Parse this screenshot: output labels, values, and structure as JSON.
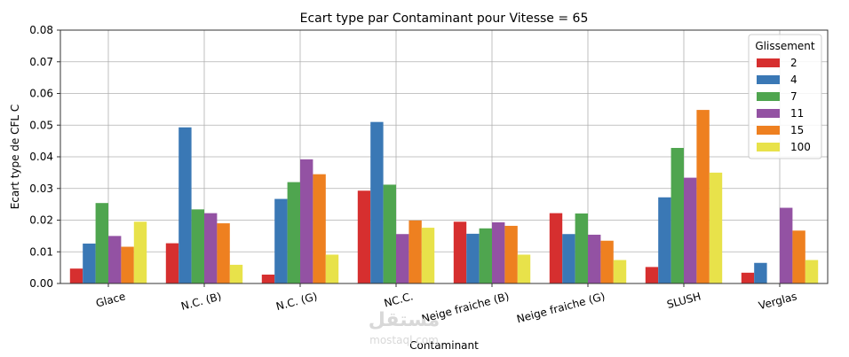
{
  "chart_data": {
    "type": "bar",
    "title": "Ecart type par Contaminant pour Vitesse = 65",
    "xlabel": "Contaminant",
    "ylabel": "Ecart type de CFL C",
    "ylim": [
      0,
      0.08
    ],
    "yticks": [
      "0.00",
      "0.01",
      "0.02",
      "0.03",
      "0.04",
      "0.05",
      "0.06",
      "0.07",
      "0.08"
    ],
    "grid": true,
    "legend_title": "Glissement",
    "legend_position": "top-right",
    "categories": [
      "Glace",
      "N.C. (B)",
      "N.C. (G)",
      "NC.C.",
      "Neige fraiche (B)",
      "Neige fraiche (G)",
      "SLUSH",
      "Verglas"
    ],
    "series": [
      {
        "name": "2",
        "color": "#d62f2f",
        "values": [
          0.0047,
          0.0127,
          0.0028,
          0.0293,
          0.0195,
          0.0222,
          0.0052,
          0.0034
        ]
      },
      {
        "name": "4",
        "color": "#3a78b5",
        "values": [
          0.0126,
          0.0493,
          0.0267,
          0.051,
          0.0157,
          0.0156,
          0.0272,
          0.0065
        ]
      },
      {
        "name": "7",
        "color": "#4fa54f",
        "values": [
          0.0254,
          0.0234,
          0.032,
          0.0312,
          0.0174,
          0.0221,
          0.0428,
          0.0
        ]
      },
      {
        "name": "11",
        "color": "#9352a3",
        "values": [
          0.015,
          0.0222,
          0.0392,
          0.0156,
          0.0193,
          0.0154,
          0.0334,
          0.0239
        ]
      },
      {
        "name": "15",
        "color": "#ee8020",
        "values": [
          0.0116,
          0.019,
          0.0345,
          0.0199,
          0.0182,
          0.0135,
          0.0548,
          0.0167
        ]
      },
      {
        "name": "100",
        "color": "#e8e24a",
        "values": [
          0.0195,
          0.0059,
          0.0091,
          0.0176,
          0.0091,
          0.0074,
          0.035,
          0.0074
        ]
      }
    ]
  },
  "watermark": {
    "main": "مستقل",
    "sub": "mostaql.com"
  }
}
